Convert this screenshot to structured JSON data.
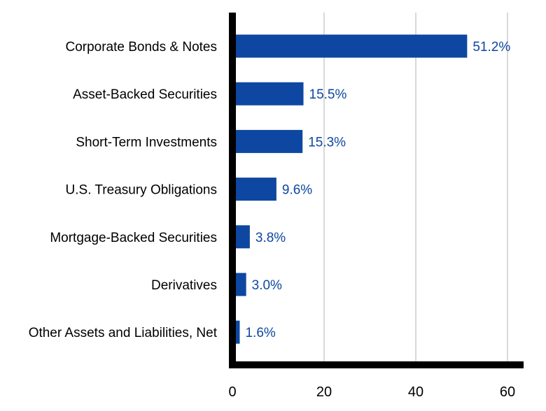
{
  "chart_data": {
    "type": "bar",
    "orientation": "horizontal",
    "title": "",
    "xlabel": "",
    "ylabel": "",
    "categories": [
      "Corporate Bonds & Notes",
      "Asset-Backed Securities",
      "Short-Term Investments",
      "U.S. Treasury Obligations",
      "Mortgage-Backed Securities",
      "Derivatives",
      "Other Assets and Liabilities, Net"
    ],
    "values": [
      51.2,
      15.5,
      15.3,
      9.6,
      3.8,
      3.0,
      1.6
    ],
    "value_labels": [
      "51.2%",
      "15.5%",
      "15.3%",
      "9.6%",
      "3.8%",
      "3.0%",
      "1.6%"
    ],
    "xlim": [
      0,
      62
    ],
    "xticks": [
      0,
      20,
      40,
      60
    ],
    "xtick_labels": [
      "0",
      "20",
      "40",
      "60"
    ],
    "grid": true,
    "legend": "none",
    "colors": {
      "bar": "#0d47a1",
      "label": "#0d47a1",
      "axis": "#000000",
      "grid": "#d9d9d9"
    }
  }
}
